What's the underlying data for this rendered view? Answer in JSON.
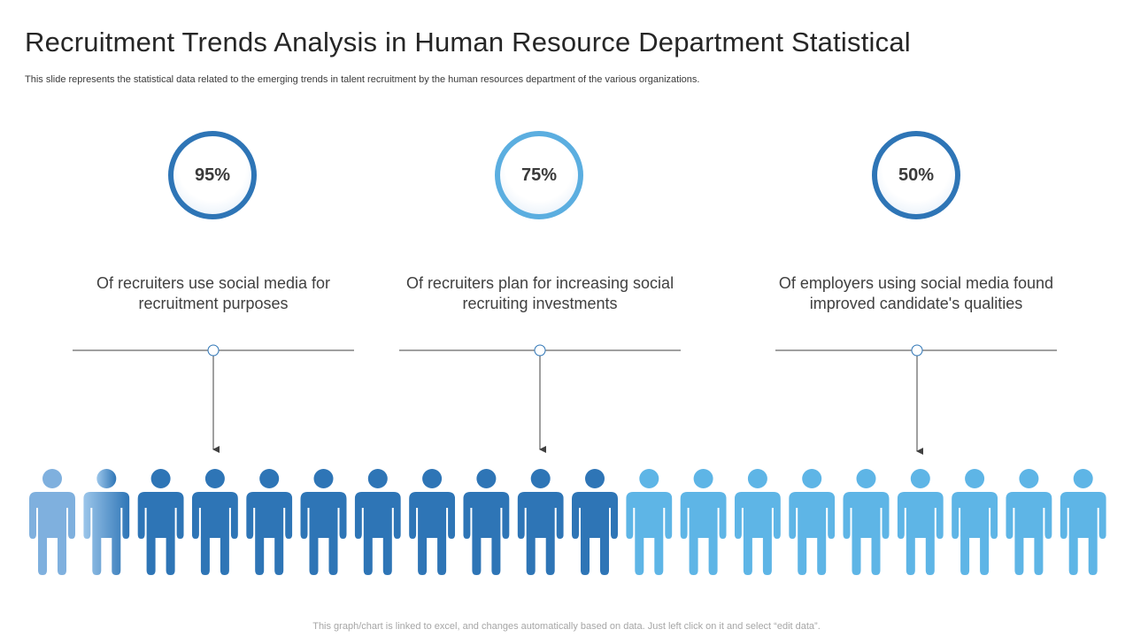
{
  "slide": {
    "title": "Recruitment Trends Analysis in Human Resource Department Statistical",
    "subtitle": "This slide represents the statistical data related to the emerging trends in talent recruitment by the human resources department of the various organizations.",
    "footer": "This graph/chart is linked to excel,  and changes automatically based on data. Just left click on it and select “edit data”."
  },
  "stats": [
    {
      "value": "95%",
      "label_line1": "Of recruiters use social media for",
      "label_line2": "recruitment purposes"
    },
    {
      "value": "75%",
      "label_line1": "Of recruiters plan for increasing social",
      "label_line2": "recruiting investments"
    },
    {
      "value": "50%",
      "label_line1": "Of employers using social media found",
      "label_line2": "improved candidate's qualities"
    }
  ],
  "people": {
    "count": 20,
    "colors": {
      "faded": "#7fb0de",
      "dark": "#2e75b6",
      "light": "#5eb5e6"
    },
    "figure_colors": [
      "faded",
      "faded-gradient",
      "dark",
      "dark",
      "dark",
      "dark",
      "dark",
      "dark",
      "dark",
      "dark",
      "dark",
      "light",
      "light",
      "light",
      "light",
      "light",
      "light",
      "light",
      "light",
      "light"
    ]
  }
}
